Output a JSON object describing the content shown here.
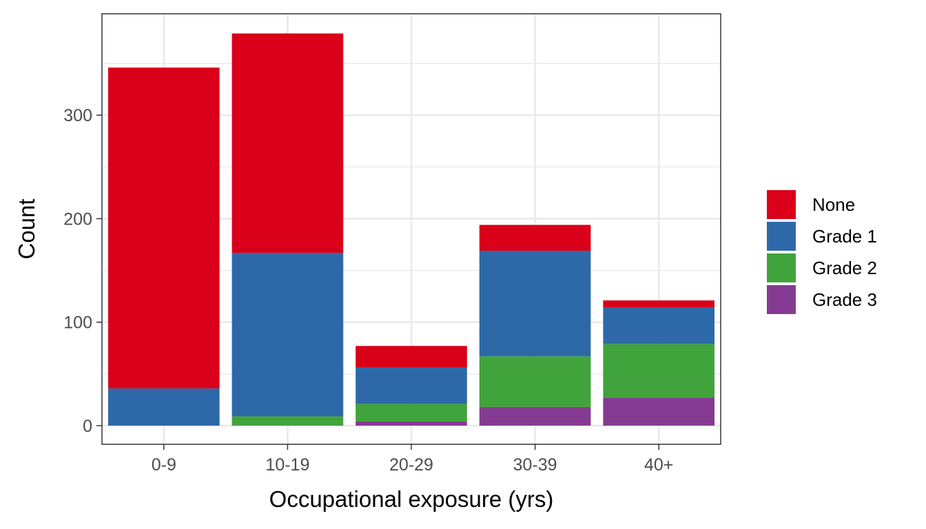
{
  "chart_data": {
    "type": "bar",
    "stacked": true,
    "categories": [
      "0-9",
      "10-19",
      "20-29",
      "30-39",
      "40+"
    ],
    "series": [
      {
        "name": "Grade 3",
        "color": "#863B93",
        "values": [
          0,
          0,
          4,
          18,
          27
        ]
      },
      {
        "name": "Grade 2",
        "color": "#41A33C",
        "values": [
          0,
          9,
          17,
          49,
          52
        ]
      },
      {
        "name": "Grade 1",
        "color": "#2D69A9",
        "values": [
          36,
          158,
          35,
          102,
          35
        ]
      },
      {
        "name": "None",
        "color": "#DA0019",
        "values": [
          310,
          212,
          21,
          25,
          7
        ]
      }
    ],
    "legend_order": [
      "None",
      "Grade 1",
      "Grade 2",
      "Grade 3"
    ],
    "legend_position": "right",
    "xlabel": "Occupational exposure (yrs)",
    "ylabel": "Count",
    "yticks": [
      0,
      100,
      200,
      300
    ],
    "ylim": [
      -18,
      398
    ],
    "grid": true
  }
}
